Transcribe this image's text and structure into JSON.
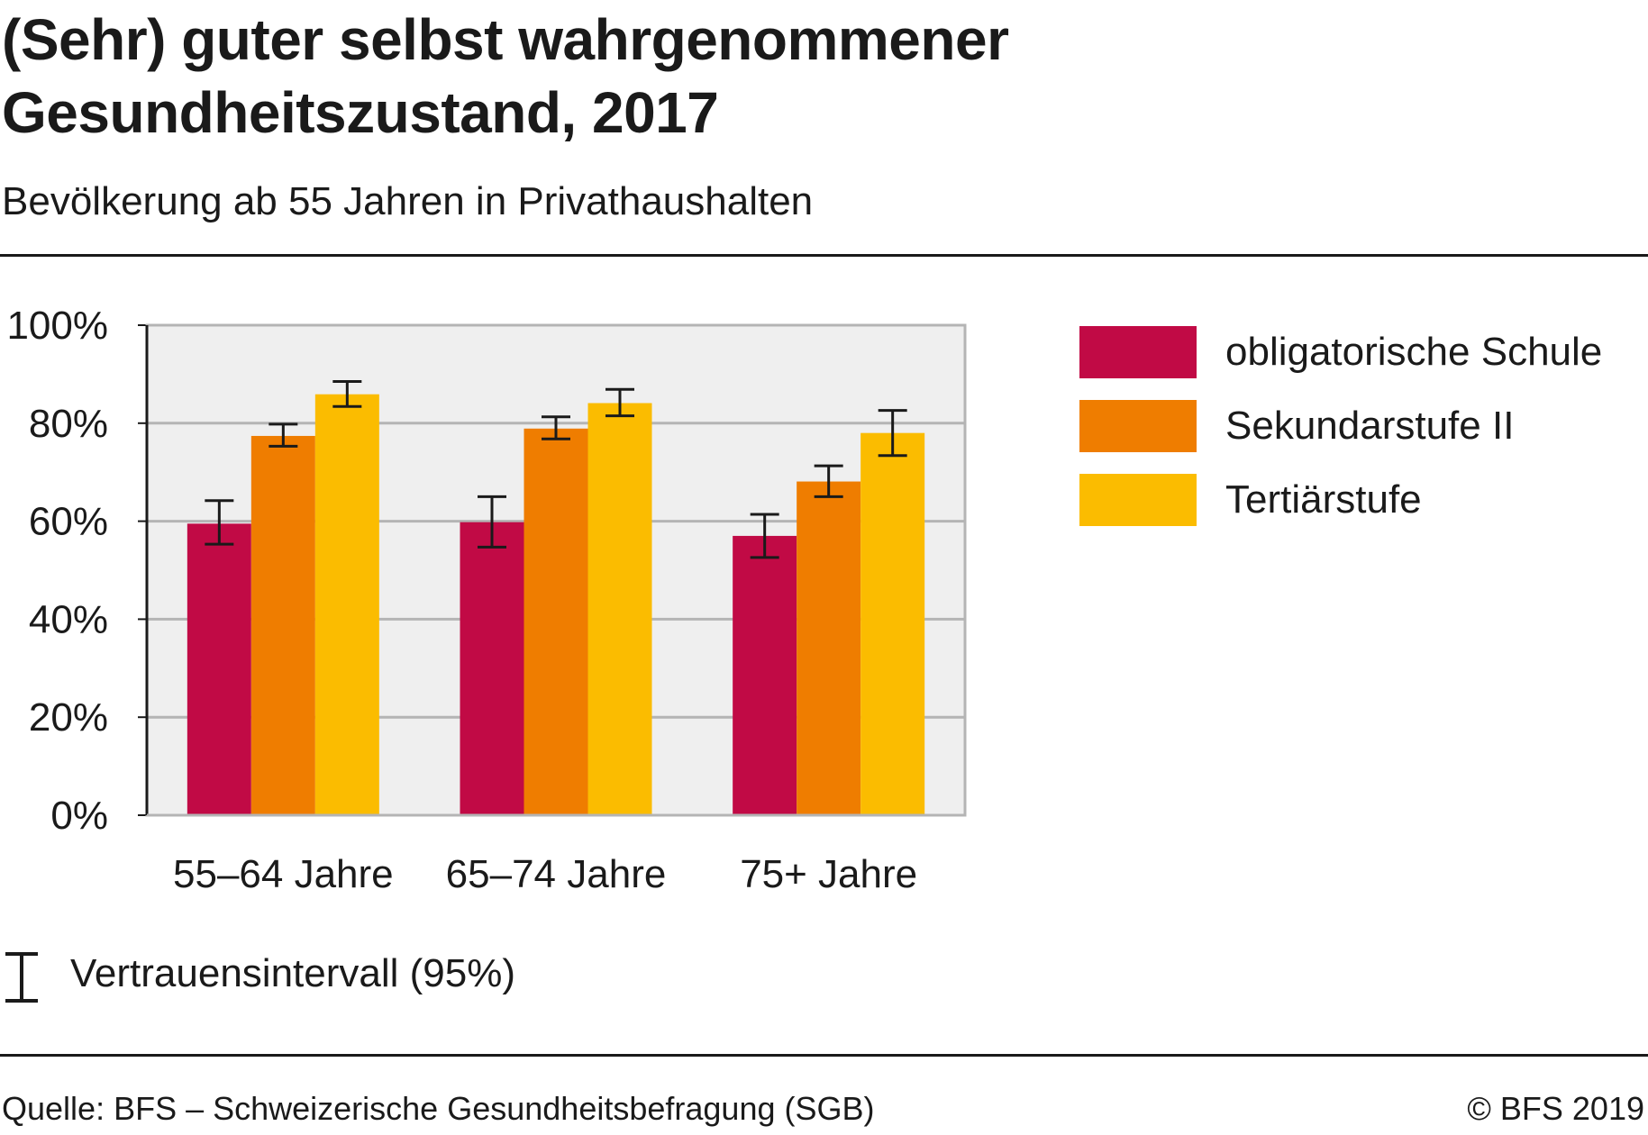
{
  "title_lines": [
    "(Sehr) guter selbst wahrgenommener",
    "Gesundheitszustand, 2017"
  ],
  "subtitle": "Bevölkerung ab 55 Jahren in Privathaushalten",
  "ci_note": "Vertrauensintervall (95%)",
  "source": "Quelle: BFS – Schweizerische Gesundheitsbefragung (SGB)",
  "copyright": "© BFS 2019",
  "colors": {
    "obligatorische_schule": "#c10a45",
    "sekundarstufe_ii": "#ef7d00",
    "tertiaerstufe": "#fbbc00",
    "plot_background": "#efefef",
    "gridline": "#b4b4b4",
    "axis": "#1a1a1a"
  },
  "chart_data": {
    "type": "bar",
    "categories": [
      "55–64 Jahre",
      "65–74 Jahre",
      "75+ Jahre"
    ],
    "series": [
      {
        "name": "obligatorische Schule",
        "values": [
          59.5,
          59.8,
          57.0
        ],
        "ci_low": [
          55.3,
          54.7,
          52.6
        ],
        "ci_high": [
          64.2,
          65.0,
          61.4
        ]
      },
      {
        "name": "Sekundarstufe II",
        "values": [
          77.4,
          78.9,
          68.1
        ],
        "ci_low": [
          75.3,
          76.8,
          65.0
        ],
        "ci_high": [
          79.8,
          81.3,
          71.3
        ]
      },
      {
        "name": "Tertiärstufe",
        "values": [
          85.9,
          84.1,
          78.0
        ],
        "ci_low": [
          83.4,
          81.5,
          73.4
        ],
        "ci_high": [
          88.5,
          86.9,
          82.6
        ]
      }
    ],
    "yticks": [
      "0%",
      "20%",
      "40%",
      "60%",
      "80%",
      "100%"
    ],
    "ylim": [
      0,
      100
    ],
    "grid": true,
    "legend": "right"
  }
}
